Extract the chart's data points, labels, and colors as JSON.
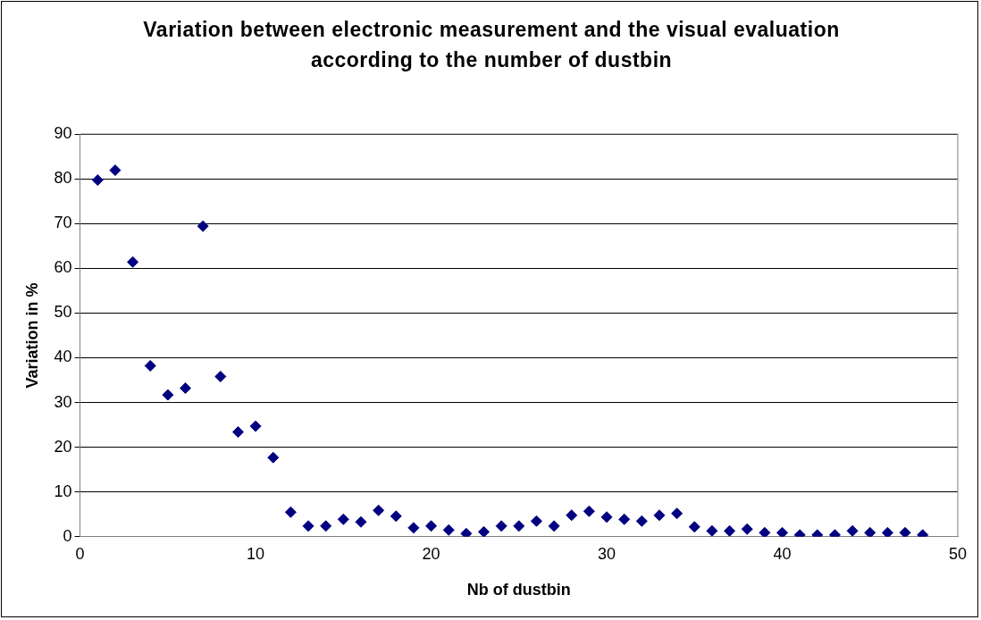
{
  "chart_data": {
    "type": "scatter",
    "title": "Variation between electronic measurement and the visual evaluation according to the number of dustbin",
    "xlabel": "Nb of dustbin",
    "ylabel": "Variation in %",
    "x": [
      1,
      2,
      3,
      4,
      5,
      6,
      7,
      8,
      9,
      10,
      11,
      12,
      13,
      14,
      15,
      16,
      17,
      18,
      19,
      20,
      21,
      22,
      23,
      24,
      25,
      26,
      27,
      28,
      29,
      30,
      31,
      32,
      33,
      34,
      35,
      36,
      37,
      38,
      39,
      40,
      41,
      42,
      43,
      44,
      45,
      46,
      47,
      48
    ],
    "values": [
      79.7,
      81.9,
      61.4,
      38.2,
      31.7,
      33.2,
      69.4,
      35.8,
      23.4,
      24.7,
      17.7,
      5.5,
      2.4,
      2.4,
      3.9,
      3.3,
      5.9,
      4.6,
      2.0,
      2.4,
      1.5,
      0.7,
      1.1,
      2.4,
      2.4,
      3.5,
      2.4,
      4.8,
      5.7,
      4.4,
      3.9,
      3.5,
      4.8,
      5.2,
      2.2,
      1.3,
      1.3,
      1.7,
      0.9,
      0.9,
      0.4,
      0.4,
      0.4,
      1.3,
      0.9,
      0.9,
      0.9,
      0.4
    ],
    "color": "#000080",
    "marker": "diamond",
    "grid": "y",
    "legend": false,
    "xlim": [
      0,
      50
    ],
    "xticks": [
      0,
      10,
      20,
      30,
      40,
      50
    ],
    "ylim": [
      0,
      90
    ],
    "yticks": [
      0,
      10,
      20,
      30,
      40,
      50,
      60,
      70,
      80,
      90
    ]
  }
}
